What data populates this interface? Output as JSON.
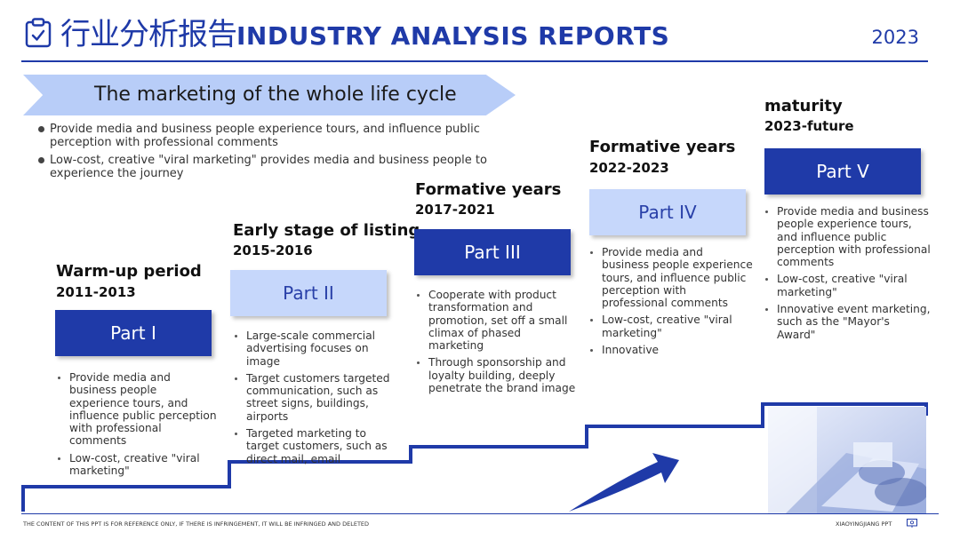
{
  "header": {
    "title_cn": "行业分析报告",
    "title_en": "INDUSTRY ANALYSIS REPORTS",
    "year": "2023",
    "icon": "clipboard-icon"
  },
  "banner": {
    "text": "The marketing of the whole life cycle"
  },
  "top_bullets": [
    "Provide media and business people experience tours, and influence public perception with professional comments",
    "Low-cost, creative \"viral marketing\" provides media and business people to experience the journey"
  ],
  "stages": [
    {
      "title": "Warm-up period",
      "years": "2011-2013",
      "part": "Part I",
      "bullets": [
        "Provide media and business people experience tours, and influence public perception with professional comments",
        "Low-cost, creative \"viral marketing\""
      ]
    },
    {
      "title": "Early stage of listing",
      "years": "2015-2016",
      "part": "Part II",
      "bullets": [
        "Large-scale commercial advertising focuses on image",
        "Target customers targeted communication, such as street signs, buildings, airports",
        "Targeted marketing to target customers, such as direct mail, email"
      ]
    },
    {
      "title": "Formative years",
      "years": "2017-2021",
      "part": "Part III",
      "bullets": [
        "Cooperate with product transformation and promotion, set off a small climax of phased marketing",
        "Through sponsorship and loyalty building, deeply penetrate the brand image"
      ]
    },
    {
      "title": "Formative years",
      "years": "2022-2023",
      "part": "Part IV",
      "bullets": [
        "Provide media and business people experience tours, and influence public perception with professional comments",
        "Low-cost, creative \"viral marketing\"",
        "Innovative"
      ]
    },
    {
      "title": "maturity",
      "years": "2023-future",
      "part": "Part V",
      "bullets": [
        "Provide media and business people experience tours, and influence public perception with professional comments",
        "Low-cost, creative \"viral marketing\"",
        "Innovative event marketing, such as the \"Mayor's Award\""
      ]
    }
  ],
  "footer": {
    "left": "THE CONTENT OF THIS PPT IS FOR REFERENCE ONLY, IF THERE IS INFRINGEMENT, IT WILL BE INFRINGED AND DELETED",
    "right": "XIAOYINGJIANG PPT",
    "icon": "presentation-icon"
  },
  "colors": {
    "primary": "#1f3aa8",
    "light": "#c6d7fb",
    "banner": "#b8cdf8"
  }
}
